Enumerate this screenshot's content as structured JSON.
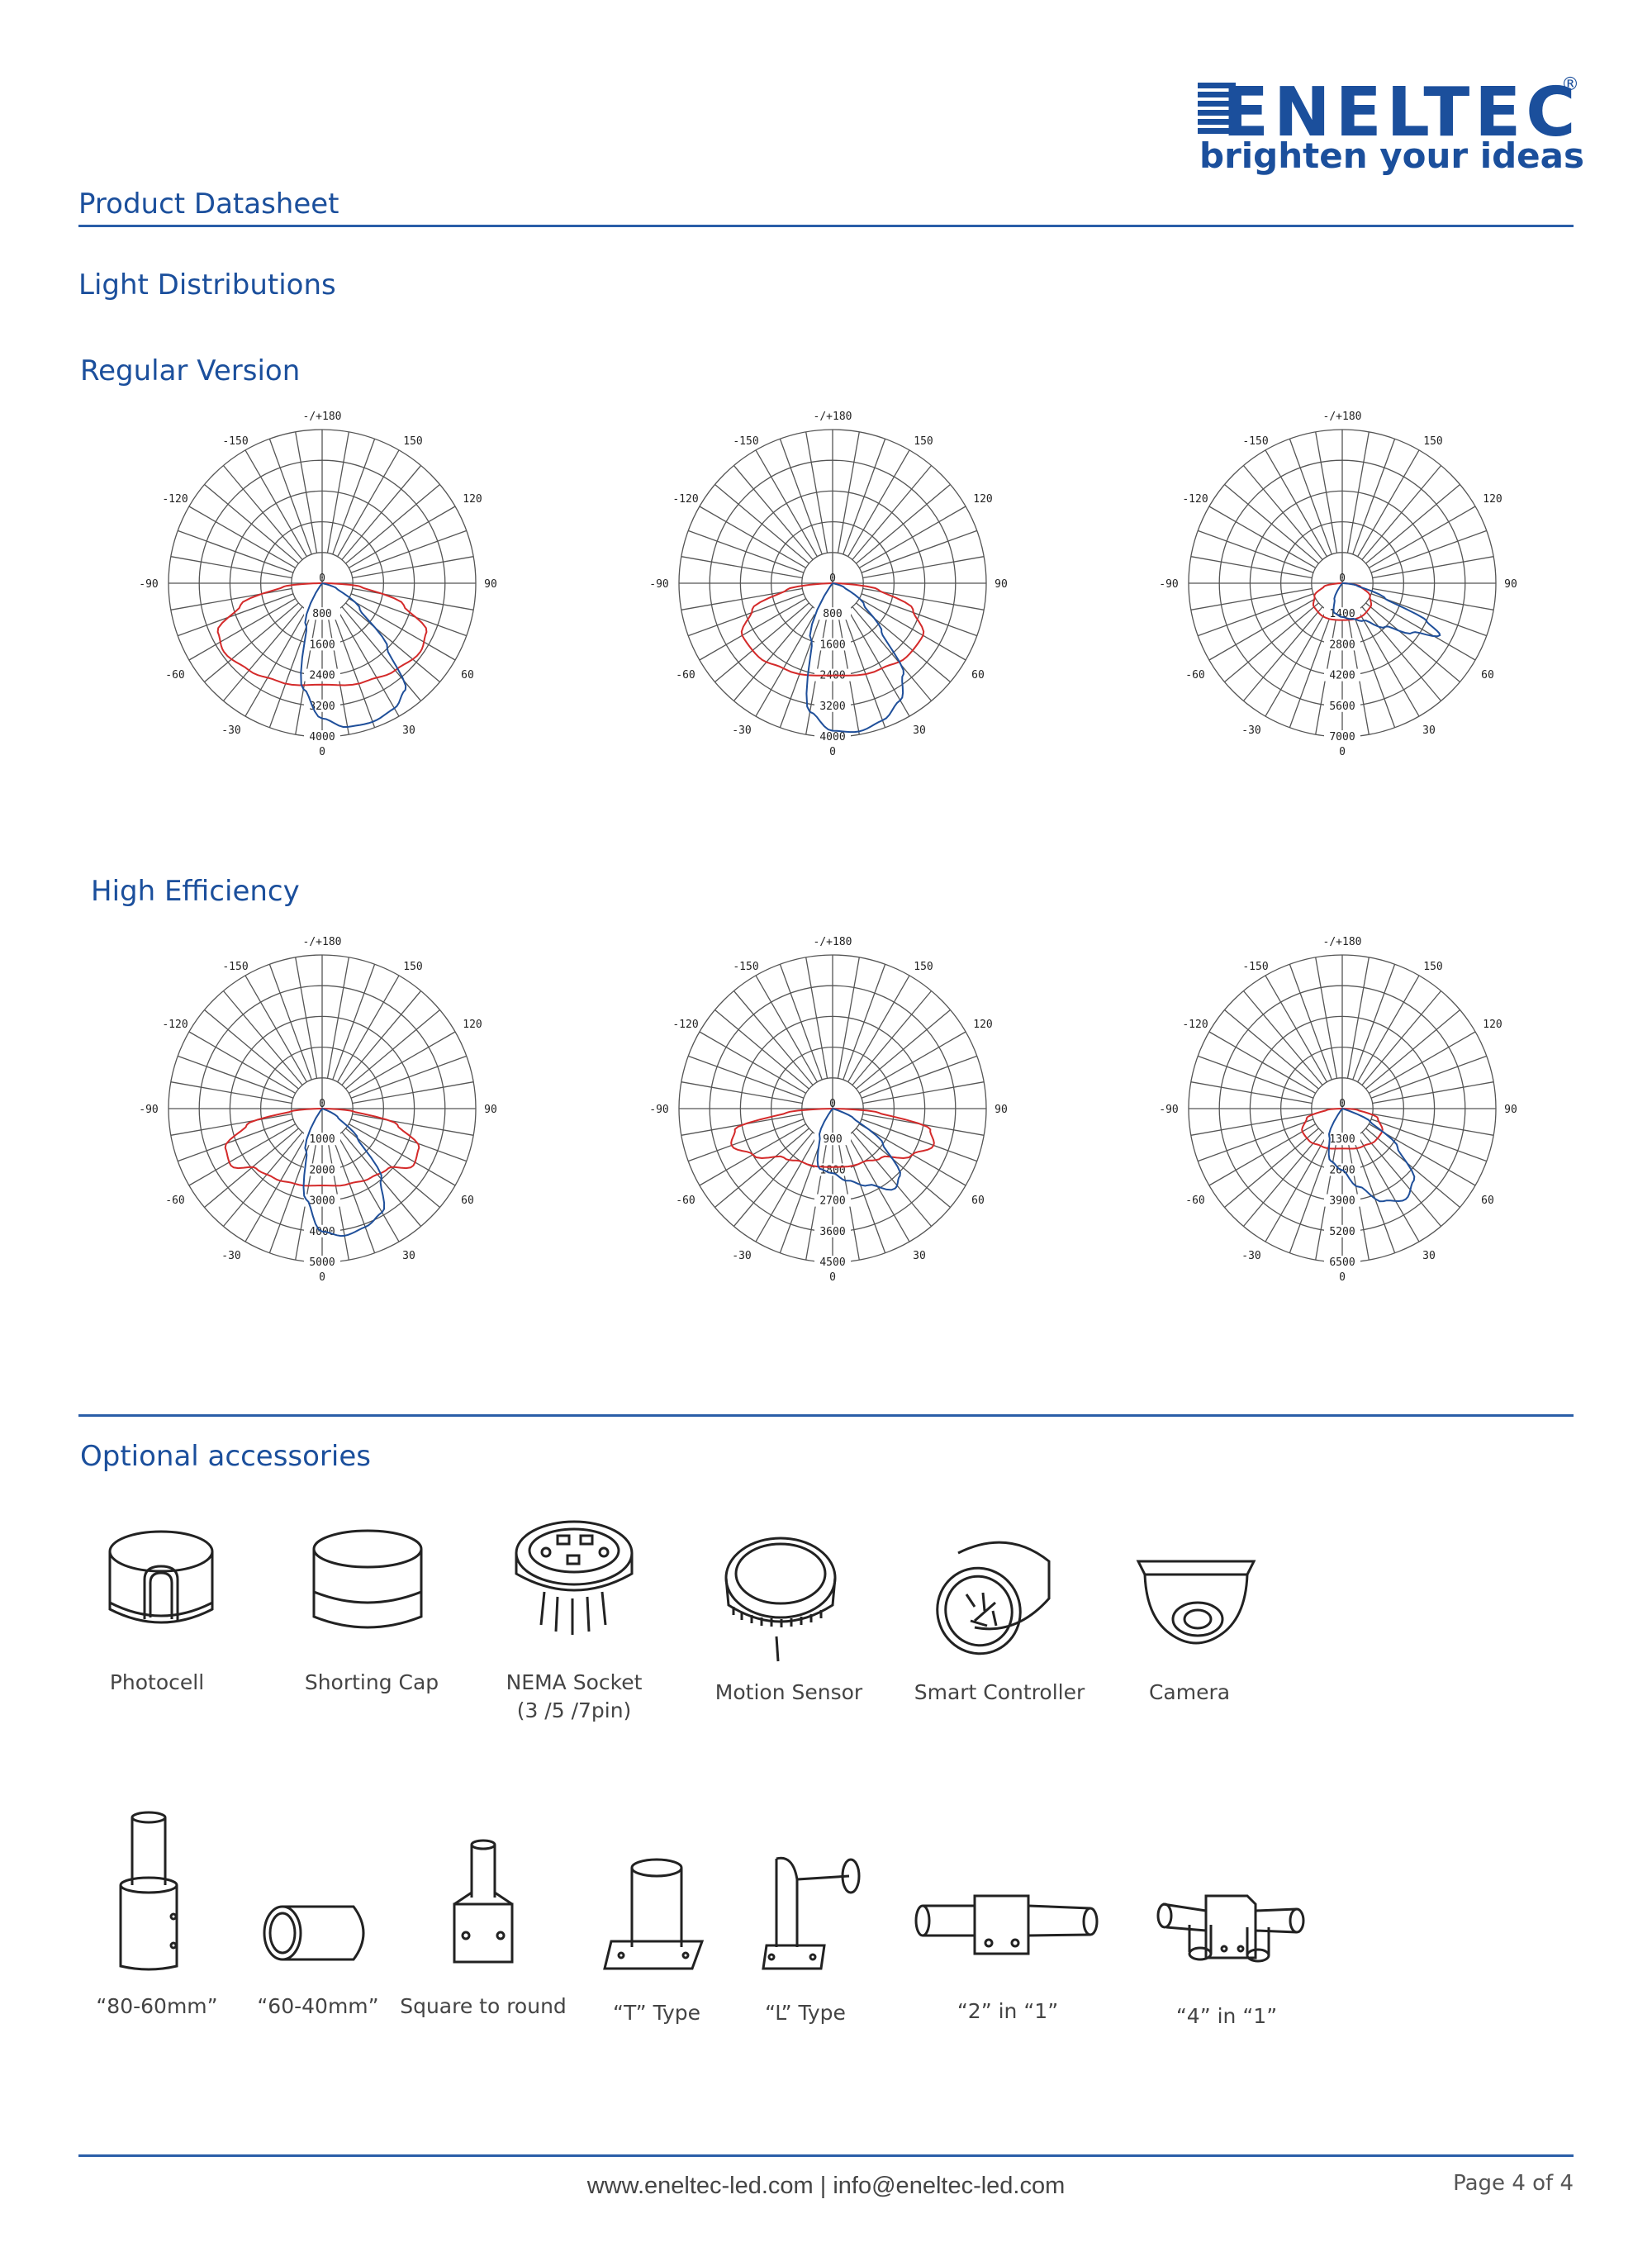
{
  "logo": {
    "wordmark": "ENELTEC",
    "registered": "®",
    "tagline": "brighten your ideas"
  },
  "header": {
    "title": "Product Datasheet"
  },
  "light_section": {
    "title": "Light Distributions"
  },
  "groups": [
    {
      "title": "Regular Version"
    },
    {
      "title": "High Efficiency"
    }
  ],
  "polar_common": {
    "top_label": "-/+180",
    "bottom_label": "0",
    "center_label": "0",
    "angle_labels": [
      "-150",
      "150",
      "-120",
      "120",
      "-90",
      "90",
      "-60",
      "60",
      "-30",
      "30"
    ],
    "series_colors": {
      "c0_180": "#d42a2a",
      "c90_270": "#1f4f9a"
    }
  },
  "charts": [
    {
      "radial_labels": [
        "800",
        "1600",
        "2400",
        "3200",
        "4000"
      ],
      "max": 4000
    },
    {
      "radial_labels": [
        "800",
        "1600",
        "2400",
        "3200",
        "4000"
      ],
      "max": 4000
    },
    {
      "radial_labels": [
        "1400",
        "2800",
        "4200",
        "5600",
        "7000"
      ],
      "max": 7000
    },
    {
      "radial_labels": [
        "1000",
        "2000",
        "3000",
        "4000",
        "5000"
      ],
      "max": 5000
    },
    {
      "radial_labels": [
        "900",
        "1800",
        "2700",
        "3600",
        "4500"
      ],
      "max": 4500
    },
    {
      "radial_labels": [
        "1300",
        "2600",
        "3900",
        "5200",
        "6500"
      ],
      "max": 6500
    }
  ],
  "accessories_section": {
    "title": "Optional accessories",
    "row1": [
      {
        "icon": "photocell-icon",
        "label": "Photocell"
      },
      {
        "icon": "shorting-cap-icon",
        "label": "Shorting Cap"
      },
      {
        "icon": "nema-socket-icon",
        "label": "NEMA Socket",
        "label2": "(3 /5 /7pin)"
      },
      {
        "icon": "motion-sensor-icon",
        "label": "Motion Sensor"
      },
      {
        "icon": "smart-controller-icon",
        "label": "Smart Controller"
      },
      {
        "icon": "camera-icon",
        "label": "Camera"
      }
    ],
    "row2": [
      {
        "icon": "adapter-80-60-icon",
        "label": "“80-60mm”"
      },
      {
        "icon": "adapter-60-40-icon",
        "label": "“60-40mm”"
      },
      {
        "icon": "square-to-round-icon",
        "label": "Square to round"
      },
      {
        "icon": "t-type-icon",
        "label": "“T” Type"
      },
      {
        "icon": "l-type-icon",
        "label": "“L” Type"
      },
      {
        "icon": "two-in-one-icon",
        "label": "“2” in “1”"
      },
      {
        "icon": "four-in-one-icon",
        "label": "“4” in “1”"
      }
    ]
  },
  "footer": {
    "website": "www.eneltec-led.com | info@eneltec-led.com",
    "page": "Page 4 of 4"
  }
}
